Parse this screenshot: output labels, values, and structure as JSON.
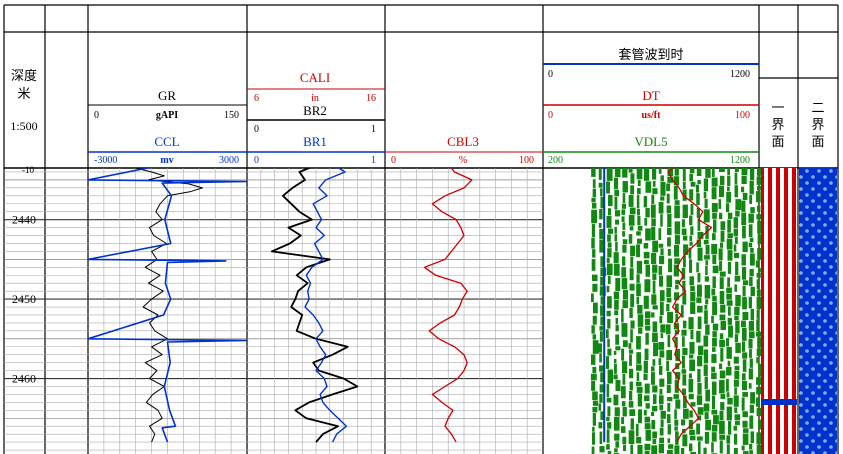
{
  "header": {
    "depth_label": "深度",
    "depth_unit": "米",
    "scale": "1:500",
    "top_partial_depth": "-10"
  },
  "colors": {
    "black": "#000000",
    "blue": "#0033cc",
    "red": "#cc0000",
    "green": "#118811",
    "grid": "#999999"
  },
  "tracks": {
    "gr": {
      "name": "GR",
      "unit": "gAPI",
      "min": "0",
      "max": "150"
    },
    "ccl": {
      "name": "CCL",
      "unit": "mv",
      "min": "-3000",
      "max": "3000"
    },
    "cali": {
      "name": "CALI",
      "unit": "in",
      "min": "6",
      "max": "16"
    },
    "br2": {
      "name": "BR2",
      "min": "0",
      "max": "1"
    },
    "br1": {
      "name": "BR1",
      "min": "0",
      "max": "1"
    },
    "cbl3": {
      "name": "CBL3",
      "unit": "%",
      "min": "0",
      "max": "100"
    },
    "casing": {
      "name": "套管波到时",
      "min": "0",
      "max": "1200"
    },
    "dt": {
      "name": "DT",
      "unit": "us/ft",
      "min": "0",
      "max": "100"
    },
    "vdl5": {
      "name": "VDL5",
      "min": "200",
      "max": "1200"
    },
    "interface1": {
      "name": "一界面"
    },
    "interface2": {
      "name": "二界面"
    }
  },
  "chart_data": {
    "type": "line",
    "title": "",
    "depth_range": [
      2433,
      2468
    ],
    "depth_ticks": [
      2440,
      2450,
      2460
    ],
    "series": [
      {
        "name": "GR",
        "range": [
          0,
          150
        ],
        "points": [
          [
            2433.0,
            52
          ],
          [
            2433.5,
            45
          ],
          [
            2434.0,
            60
          ],
          [
            2434.5,
            72
          ],
          [
            2435.0,
            57
          ],
          [
            2435.5,
            95
          ],
          [
            2436.0,
            108
          ],
          [
            2436.5,
            96
          ],
          [
            2437.0,
            75
          ],
          [
            2438.0,
            68
          ],
          [
            2439.0,
            64
          ],
          [
            2440.0,
            70
          ],
          [
            2441.0,
            58
          ],
          [
            2442.0,
            62
          ],
          [
            2443.0,
            74
          ],
          [
            2444.0,
            60
          ],
          [
            2445.0,
            65
          ],
          [
            2446.0,
            54
          ],
          [
            2447.0,
            68
          ],
          [
            2448.0,
            57
          ],
          [
            2449.0,
            71
          ],
          [
            2450.0,
            60
          ],
          [
            2451.0,
            52
          ],
          [
            2452.0,
            66
          ],
          [
            2453.0,
            58
          ],
          [
            2454.0,
            63
          ],
          [
            2455.0,
            75
          ],
          [
            2456.0,
            60
          ],
          [
            2457.0,
            70
          ],
          [
            2458.0,
            54
          ],
          [
            2459.0,
            65
          ],
          [
            2460.0,
            58
          ],
          [
            2461.0,
            72
          ],
          [
            2462.0,
            61
          ],
          [
            2463.0,
            55
          ],
          [
            2464.0,
            66
          ],
          [
            2465.0,
            70
          ],
          [
            2466.0,
            58
          ],
          [
            2467.0,
            63
          ],
          [
            2468.0,
            60
          ]
        ]
      },
      {
        "name": "CCL",
        "range": [
          -3000,
          3000
        ],
        "points": [
          [
            2433.0,
            0
          ],
          [
            2435.0,
            -3000
          ],
          [
            2435.2,
            3000
          ],
          [
            2435.4,
            -200
          ],
          [
            2437.0,
            150
          ],
          [
            2440.0,
            -100
          ],
          [
            2443.0,
            120
          ],
          [
            2445.0,
            -3000
          ],
          [
            2445.2,
            2200
          ],
          [
            2445.4,
            0
          ],
          [
            2448.0,
            -80
          ],
          [
            2450.0,
            120
          ],
          [
            2452.0,
            -150
          ],
          [
            2455.0,
            -3000
          ],
          [
            2455.2,
            3000
          ],
          [
            2455.4,
            0
          ],
          [
            2458.0,
            100
          ],
          [
            2461.0,
            -120
          ],
          [
            2464.0,
            80
          ],
          [
            2466.0,
            300
          ],
          [
            2466.2,
            -200
          ],
          [
            2468.0,
            0
          ]
        ]
      },
      {
        "name": "BR2",
        "range": [
          0,
          1
        ],
        "points": [
          [
            2433.0,
            0.52
          ],
          [
            2434.0,
            0.38
          ],
          [
            2435.0,
            0.42
          ],
          [
            2436.0,
            0.33
          ],
          [
            2437.0,
            0.26
          ],
          [
            2438.0,
            0.32
          ],
          [
            2439.0,
            0.38
          ],
          [
            2440.0,
            0.47
          ],
          [
            2441.0,
            0.3
          ],
          [
            2442.0,
            0.39
          ],
          [
            2443.0,
            0.31
          ],
          [
            2444.0,
            0.18
          ],
          [
            2445.0,
            0.6
          ],
          [
            2446.0,
            0.43
          ],
          [
            2447.0,
            0.36
          ],
          [
            2448.0,
            0.44
          ],
          [
            2449.0,
            0.37
          ],
          [
            2450.0,
            0.35
          ],
          [
            2451.0,
            0.32
          ],
          [
            2452.0,
            0.4
          ],
          [
            2453.0,
            0.38
          ],
          [
            2454.0,
            0.36
          ],
          [
            2455.0,
            0.5
          ],
          [
            2456.0,
            0.73
          ],
          [
            2457.0,
            0.62
          ],
          [
            2458.0,
            0.48
          ],
          [
            2459.0,
            0.52
          ],
          [
            2460.0,
            0.7
          ],
          [
            2461.0,
            0.8
          ],
          [
            2462.0,
            0.62
          ],
          [
            2463.0,
            0.45
          ],
          [
            2464.0,
            0.35
          ],
          [
            2465.0,
            0.43
          ],
          [
            2466.0,
            0.66
          ],
          [
            2467.0,
            0.55
          ],
          [
            2468.0,
            0.5
          ]
        ]
      },
      {
        "name": "BR1",
        "range": [
          0,
          1
        ],
        "points": [
          [
            2433.0,
            0.62
          ],
          [
            2434.0,
            0.71
          ],
          [
            2435.0,
            0.57
          ],
          [
            2436.0,
            0.52
          ],
          [
            2437.0,
            0.58
          ],
          [
            2438.0,
            0.48
          ],
          [
            2439.0,
            0.51
          ],
          [
            2440.0,
            0.54
          ],
          [
            2441.0,
            0.5
          ],
          [
            2442.0,
            0.56
          ],
          [
            2443.0,
            0.49
          ],
          [
            2444.0,
            0.52
          ],
          [
            2445.0,
            0.55
          ],
          [
            2446.0,
            0.47
          ],
          [
            2447.0,
            0.43
          ],
          [
            2448.0,
            0.46
          ],
          [
            2449.0,
            0.44
          ],
          [
            2450.0,
            0.45
          ],
          [
            2451.0,
            0.42
          ],
          [
            2452.0,
            0.48
          ],
          [
            2453.0,
            0.52
          ],
          [
            2454.0,
            0.55
          ],
          [
            2455.0,
            0.5
          ],
          [
            2456.0,
            0.53
          ],
          [
            2457.0,
            0.57
          ],
          [
            2458.0,
            0.54
          ],
          [
            2459.0,
            0.5
          ],
          [
            2460.0,
            0.56
          ],
          [
            2461.0,
            0.58
          ],
          [
            2462.0,
            0.53
          ],
          [
            2463.0,
            0.55
          ],
          [
            2464.0,
            0.6
          ],
          [
            2465.0,
            0.66
          ],
          [
            2466.0,
            0.72
          ],
          [
            2467.0,
            0.65
          ],
          [
            2468.0,
            0.62
          ]
        ]
      },
      {
        "name": "CBL3",
        "range": [
          0,
          100
        ],
        "points": [
          [
            2433.0,
            40
          ],
          [
            2434.0,
            44
          ],
          [
            2435.0,
            55
          ],
          [
            2436.0,
            50
          ],
          [
            2437.0,
            38
          ],
          [
            2438.0,
            30
          ],
          [
            2439.0,
            36
          ],
          [
            2440.0,
            45
          ],
          [
            2441.0,
            48
          ],
          [
            2442.0,
            50
          ],
          [
            2443.0,
            46
          ],
          [
            2444.0,
            42
          ],
          [
            2445.0,
            38
          ],
          [
            2446.0,
            25
          ],
          [
            2447.0,
            32
          ],
          [
            2448.0,
            48
          ],
          [
            2449.0,
            52
          ],
          [
            2450.0,
            49
          ],
          [
            2451.0,
            47
          ],
          [
            2452.0,
            44
          ],
          [
            2453.0,
            35
          ],
          [
            2454.0,
            28
          ],
          [
            2455.0,
            34
          ],
          [
            2456.0,
            44
          ],
          [
            2457.0,
            50
          ],
          [
            2458.0,
            52
          ],
          [
            2459.0,
            50
          ],
          [
            2460.0,
            46
          ],
          [
            2461.0,
            38
          ],
          [
            2462.0,
            30
          ],
          [
            2463.0,
            36
          ],
          [
            2464.0,
            43
          ],
          [
            2465.0,
            40
          ],
          [
            2466.0,
            38
          ],
          [
            2467.0,
            42
          ],
          [
            2468.0,
            45
          ]
        ]
      },
      {
        "name": "DT",
        "range": [
          0,
          100
        ],
        "points": [
          [
            2433.0,
            62
          ],
          [
            2434.0,
            58
          ],
          [
            2435.0,
            60
          ],
          [
            2436.0,
            63
          ],
          [
            2437.0,
            65
          ],
          [
            2438.0,
            70
          ],
          [
            2439.0,
            74
          ],
          [
            2440.0,
            72
          ],
          [
            2441.0,
            78
          ],
          [
            2442.0,
            74
          ],
          [
            2443.0,
            71
          ],
          [
            2444.0,
            67
          ],
          [
            2445.0,
            64
          ],
          [
            2446.0,
            62
          ],
          [
            2447.0,
            65
          ],
          [
            2448.0,
            63
          ],
          [
            2449.0,
            66
          ],
          [
            2450.0,
            62
          ],
          [
            2451.0,
            60
          ],
          [
            2452.0,
            64
          ],
          [
            2453.0,
            61
          ],
          [
            2454.0,
            63
          ],
          [
            2455.0,
            60
          ],
          [
            2456.0,
            62
          ],
          [
            2457.0,
            61
          ],
          [
            2458.0,
            64
          ],
          [
            2459.0,
            60
          ],
          [
            2460.0,
            63
          ],
          [
            2461.0,
            62
          ],
          [
            2462.0,
            65
          ],
          [
            2463.0,
            67
          ],
          [
            2464.0,
            70
          ],
          [
            2465.0,
            72
          ],
          [
            2466.0,
            68
          ],
          [
            2467.0,
            64
          ],
          [
            2468.0,
            62
          ]
        ]
      },
      {
        "name": "套管波到时",
        "range": [
          0,
          1200
        ],
        "points": [
          [
            2433.0,
            340
          ],
          [
            2468.0,
            340
          ]
        ]
      }
    ],
    "interface1_pattern": "red-stripes",
    "interface2_pattern": "blue-dots"
  }
}
